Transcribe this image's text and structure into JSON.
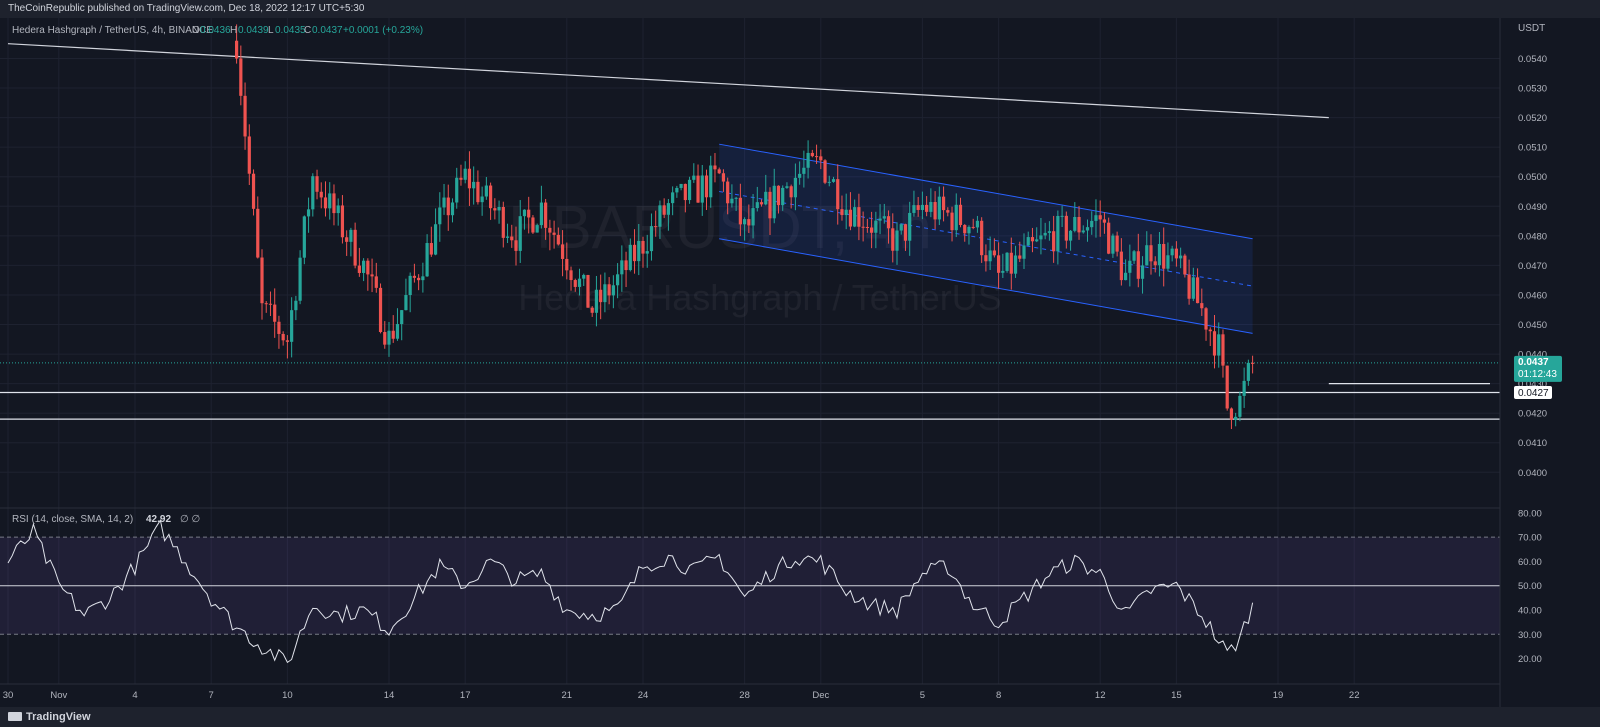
{
  "header": {
    "publish_note": "TheCoinRepublic published on TradingView.com, Dec 18, 2022 12:17 UTC+5:30"
  },
  "symbol": {
    "name": "Hedera Hashgraph / TetherUS, 4h, BINANCE",
    "watermark_symbol": "HBARUSDT, 4h",
    "watermark_name": "Hedera Hashgraph / TetherUS"
  },
  "ohlc": {
    "o_label": "O",
    "o": "0.0436",
    "h_label": "H",
    "h": "0.0439",
    "l_label": "L",
    "l": "0.0435",
    "c_label": "C",
    "c": "0.0437",
    "change": "+0.0001 (+0.23%)"
  },
  "price_scale": {
    "currency": "USDT",
    "ticks": [
      "0.0540",
      "0.0530",
      "0.0520",
      "0.0510",
      "0.0500",
      "0.0490",
      "0.0480",
      "0.0470",
      "0.0460",
      "0.0450",
      "0.0440",
      "0.0430",
      "0.0420",
      "0.0410",
      "0.0400"
    ]
  },
  "price_badges": {
    "last_price": "0.0437",
    "countdown": "01:12:43",
    "level_1": "0.0427"
  },
  "rsi_panel": {
    "label": "RSI (14, close, SMA, 14, 2)",
    "value": "42.92",
    "flags": "∅ ∅",
    "ticks": [
      "80.00",
      "70.00",
      "60.00",
      "50.00",
      "40.00",
      "30.00",
      "20.00"
    ]
  },
  "time_axis": [
    "30",
    "Nov",
    "4",
    "7",
    "10",
    "14",
    "17",
    "21",
    "24",
    "28",
    "Dec",
    "5",
    "8",
    "12",
    "15",
    "19",
    "22"
  ],
  "footer": {
    "brand": "TradingView"
  },
  "colors": {
    "background": "#131722",
    "grid": "#1e2230",
    "up": "#26a69a",
    "down": "#ef5350",
    "channel": "#2962ff",
    "rsi_line": "#e0e3eb",
    "rsi_band": "#7e57c2",
    "text": "#b2b5be"
  },
  "chart_data": {
    "type": "candlestick",
    "timeframe": "4h",
    "y_unit": "USDT",
    "ylim": [
      0.0393,
      0.0552
    ],
    "x_dates": [
      "2022-10-30",
      "2022-11-01",
      "2022-11-04",
      "2022-11-07",
      "2022-11-10",
      "2022-11-14",
      "2022-11-17",
      "2022-11-21",
      "2022-11-24",
      "2022-11-28",
      "2022-12-01",
      "2022-12-05",
      "2022-12-08",
      "2022-12-12",
      "2022-12-15",
      "2022-12-19",
      "2022-12-22"
    ],
    "price_path": [
      {
        "date": "2022-11-08",
        "price": 0.0546
      },
      {
        "date": "2022-11-09",
        "price": 0.0455
      },
      {
        "date": "2022-11-10",
        "price": 0.0445
      },
      {
        "date": "2022-11-11",
        "price": 0.05
      },
      {
        "date": "2022-11-13",
        "price": 0.047
      },
      {
        "date": "2022-11-14",
        "price": 0.0445
      },
      {
        "date": "2022-11-16",
        "price": 0.0485
      },
      {
        "date": "2022-11-17",
        "price": 0.05
      },
      {
        "date": "2022-11-19",
        "price": 0.048
      },
      {
        "date": "2022-11-20",
        "price": 0.049
      },
      {
        "date": "2022-11-22",
        "price": 0.0455
      },
      {
        "date": "2022-11-23",
        "price": 0.0465
      },
      {
        "date": "2022-11-25",
        "price": 0.049
      },
      {
        "date": "2022-11-27",
        "price": 0.05
      },
      {
        "date": "2022-11-28",
        "price": 0.0482
      },
      {
        "date": "2022-11-30",
        "price": 0.05
      },
      {
        "date": "2022-12-01",
        "price": 0.0505
      },
      {
        "date": "2022-12-02",
        "price": 0.049
      },
      {
        "date": "2022-12-04",
        "price": 0.0478
      },
      {
        "date": "2022-12-05",
        "price": 0.049
      },
      {
        "date": "2022-12-07",
        "price": 0.0484
      },
      {
        "date": "2022-12-08",
        "price": 0.0466
      },
      {
        "date": "2022-12-10",
        "price": 0.048
      },
      {
        "date": "2022-12-12",
        "price": 0.0486
      },
      {
        "date": "2022-12-13",
        "price": 0.0466
      },
      {
        "date": "2022-12-14",
        "price": 0.0476
      },
      {
        "date": "2022-12-15",
        "price": 0.047
      },
      {
        "date": "2022-12-16",
        "price": 0.0455
      },
      {
        "date": "2022-12-16T16:00",
        "price": 0.0442
      },
      {
        "date": "2022-12-17",
        "price": 0.0422
      },
      {
        "date": "2022-12-17T12:00",
        "price": 0.0424
      },
      {
        "date": "2022-12-18",
        "price": 0.0437
      }
    ],
    "horizontal_levels": [
      0.0427,
      0.0418
    ],
    "short_level": {
      "from": "2022-12-21",
      "price": 0.043
    },
    "trendline": {
      "from": {
        "date": "2022-10-30",
        "price": 0.0545
      },
      "to": {
        "date": "2022-12-21",
        "price": 0.052
      }
    },
    "channel": {
      "upper": {
        "from": {
          "date": "2022-11-27",
          "price": 0.0511
        },
        "to": {
          "date": "2022-12-18",
          "price": 0.0479
        }
      },
      "lower": {
        "from": {
          "date": "2022-11-27",
          "price": 0.0479
        },
        "to": {
          "date": "2022-12-18",
          "price": 0.0447
        }
      }
    },
    "rsi": {
      "ylim": [
        12,
        82
      ],
      "levels": {
        "upper": 70,
        "middle": 50,
        "lower": 30
      },
      "path": [
        {
          "date": "2022-10-30",
          "value": 60
        },
        {
          "date": "2022-10-31",
          "value": 72
        },
        {
          "date": "2022-11-01",
          "value": 50
        },
        {
          "date": "2022-11-02",
          "value": 38
        },
        {
          "date": "2022-11-03",
          "value": 45
        },
        {
          "date": "2022-11-04",
          "value": 58
        },
        {
          "date": "2022-11-05",
          "value": 74
        },
        {
          "date": "2022-11-06",
          "value": 60
        },
        {
          "date": "2022-11-07",
          "value": 45
        },
        {
          "date": "2022-11-08",
          "value": 33
        },
        {
          "date": "2022-11-09",
          "value": 25
        },
        {
          "date": "2022-11-10",
          "value": 18
        },
        {
          "date": "2022-11-11",
          "value": 42
        },
        {
          "date": "2022-11-12",
          "value": 38
        },
        {
          "date": "2022-11-13",
          "value": 40
        },
        {
          "date": "2022-11-14",
          "value": 32
        },
        {
          "date": "2022-11-15",
          "value": 45
        },
        {
          "date": "2022-11-16",
          "value": 58
        },
        {
          "date": "2022-11-17",
          "value": 50
        },
        {
          "date": "2022-11-18",
          "value": 60
        },
        {
          "date": "2022-11-19",
          "value": 52
        },
        {
          "date": "2022-11-20",
          "value": 55
        },
        {
          "date": "2022-11-21",
          "value": 40
        },
        {
          "date": "2022-11-22",
          "value": 38
        },
        {
          "date": "2022-11-23",
          "value": 40
        },
        {
          "date": "2022-11-24",
          "value": 58
        },
        {
          "date": "2022-11-25",
          "value": 62
        },
        {
          "date": "2022-11-26",
          "value": 56
        },
        {
          "date": "2022-11-27",
          "value": 62
        },
        {
          "date": "2022-11-28",
          "value": 45
        },
        {
          "date": "2022-11-29",
          "value": 55
        },
        {
          "date": "2022-11-30",
          "value": 62
        },
        {
          "date": "2022-12-01",
          "value": 60
        },
        {
          "date": "2022-12-02",
          "value": 48
        },
        {
          "date": "2022-12-03",
          "value": 42
        },
        {
          "date": "2022-12-04",
          "value": 40
        },
        {
          "date": "2022-12-05",
          "value": 55
        },
        {
          "date": "2022-12-06",
          "value": 58
        },
        {
          "date": "2022-12-07",
          "value": 42
        },
        {
          "date": "2022-12-08",
          "value": 35
        },
        {
          "date": "2022-12-09",
          "value": 45
        },
        {
          "date": "2022-12-10",
          "value": 55
        },
        {
          "date": "2022-12-11",
          "value": 60
        },
        {
          "date": "2022-12-12",
          "value": 55
        },
        {
          "date": "2022-12-13",
          "value": 38
        },
        {
          "date": "2022-12-14",
          "value": 48
        },
        {
          "date": "2022-12-15",
          "value": 50
        },
        {
          "date": "2022-12-16",
          "value": 38
        },
        {
          "date": "2022-12-17",
          "value": 22
        },
        {
          "date": "2022-12-17T12:00",
          "value": 28
        },
        {
          "date": "2022-12-18",
          "value": 43
        }
      ]
    }
  }
}
